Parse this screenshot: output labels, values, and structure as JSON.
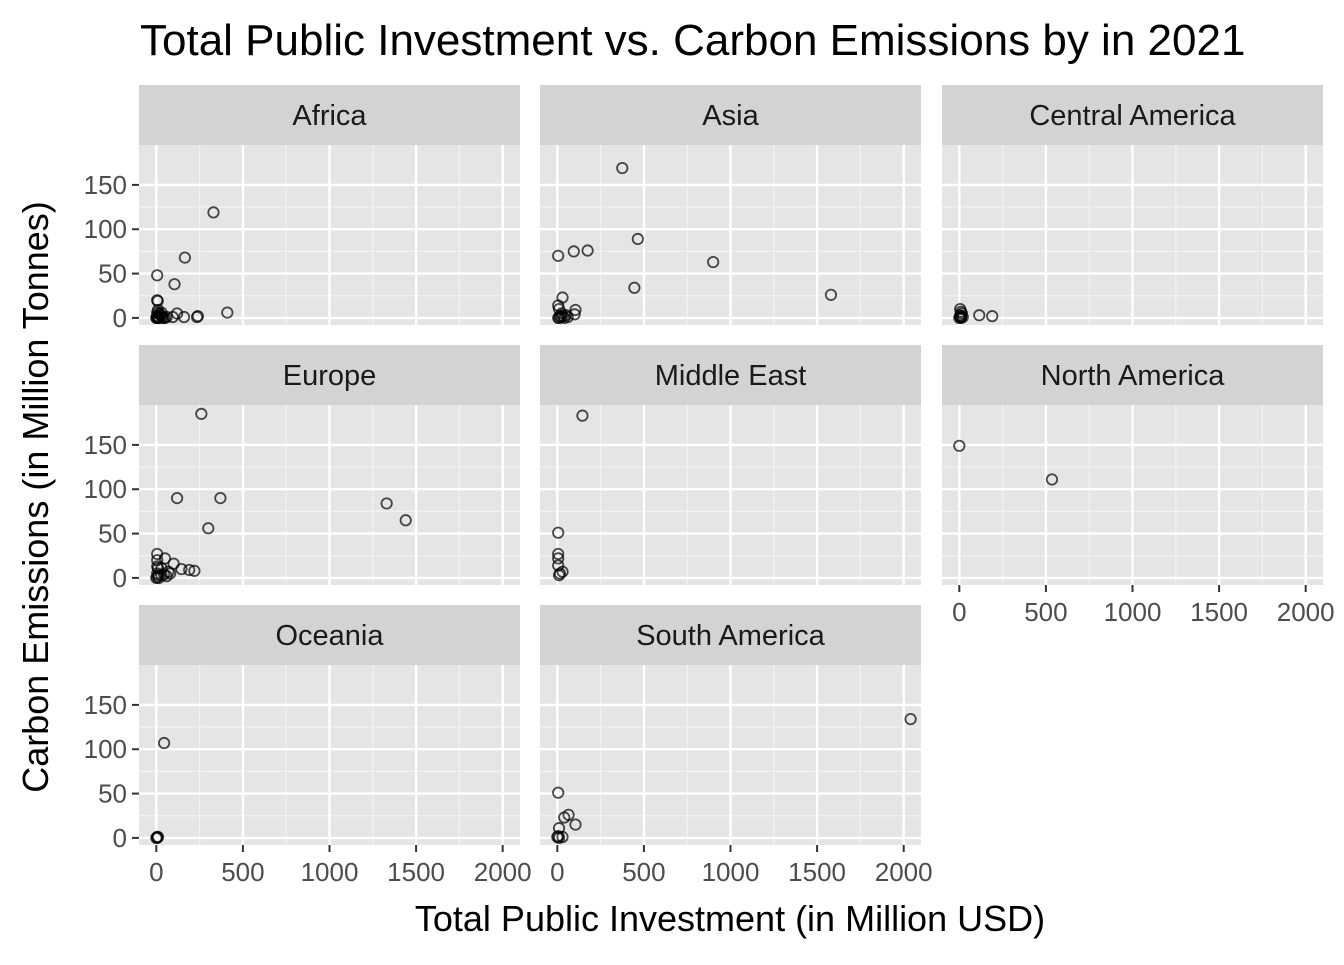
{
  "chart_data": {
    "type": "scatter",
    "title": "Total Public Investment vs. Carbon Emissions by in 2021",
    "xlabel": "Total Public Investment (in Million USD)",
    "ylabel": "Carbon Emissions (in Million Tonnes)",
    "xlim": [
      -100,
      2100
    ],
    "ylim": [
      -8,
      195
    ],
    "x_ticks": [
      0,
      500,
      1000,
      1500,
      2000
    ],
    "y_ticks": [
      0,
      50,
      100,
      150
    ],
    "grid": true,
    "legend": "none",
    "panel_background": "#e5e5e5",
    "strip_background": "#d3d3d3",
    "point_color": "#000000",
    "panels": [
      {
        "name": "Africa",
        "points": [
          [
            330,
            119
          ],
          [
            165,
            68
          ],
          [
            105,
            38
          ],
          [
            5,
            48
          ],
          [
            410,
            6
          ],
          [
            240,
            2
          ],
          [
            235,
            1
          ],
          [
            120,
            5
          ],
          [
            160,
            1
          ],
          [
            95,
            1
          ],
          [
            5,
            20
          ],
          [
            8,
            19
          ],
          [
            10,
            9
          ],
          [
            5,
            6
          ],
          [
            15,
            5
          ],
          [
            20,
            4
          ],
          [
            25,
            3
          ],
          [
            30,
            2
          ],
          [
            35,
            1
          ],
          [
            5,
            2
          ],
          [
            10,
            1
          ],
          [
            0,
            0
          ],
          [
            2,
            0
          ],
          [
            8,
            0
          ],
          [
            12,
            0
          ],
          [
            18,
            0
          ],
          [
            40,
            0
          ],
          [
            50,
            0
          ],
          [
            60,
            1
          ],
          [
            30,
            6
          ]
        ]
      },
      {
        "name": "Asia",
        "points": [
          [
            375,
            169
          ],
          [
            465,
            89
          ],
          [
            175,
            76
          ],
          [
            95,
            75
          ],
          [
            5,
            70
          ],
          [
            900,
            63
          ],
          [
            445,
            34
          ],
          [
            1580,
            26
          ],
          [
            30,
            23
          ],
          [
            5,
            14
          ],
          [
            10,
            10
          ],
          [
            105,
            9
          ],
          [
            100,
            4
          ],
          [
            50,
            3
          ],
          [
            30,
            2
          ],
          [
            20,
            1
          ],
          [
            5,
            0
          ],
          [
            10,
            0
          ],
          [
            15,
            2
          ],
          [
            40,
            0
          ],
          [
            60,
            1
          ],
          [
            25,
            5
          ]
        ]
      },
      {
        "name": "Central America",
        "points": [
          [
            5,
            10
          ],
          [
            10,
            7
          ],
          [
            15,
            5
          ],
          [
            5,
            3
          ],
          [
            10,
            2
          ],
          [
            5,
            1
          ],
          [
            0,
            0
          ],
          [
            10,
            0
          ],
          [
            115,
            3
          ],
          [
            190,
            2
          ],
          [
            20,
            1
          ]
        ]
      },
      {
        "name": "Europe",
        "points": [
          [
            260,
            185
          ],
          [
            370,
            90
          ],
          [
            120,
            90
          ],
          [
            300,
            56
          ],
          [
            1330,
            84
          ],
          [
            1440,
            65
          ],
          [
            5,
            27
          ],
          [
            50,
            22
          ],
          [
            5,
            20
          ],
          [
            100,
            16
          ],
          [
            5,
            13
          ],
          [
            10,
            11
          ],
          [
            30,
            11
          ],
          [
            145,
            10
          ],
          [
            190,
            9
          ],
          [
            220,
            8
          ],
          [
            70,
            7
          ],
          [
            80,
            5
          ],
          [
            60,
            2
          ],
          [
            5,
            5
          ],
          [
            10,
            3
          ],
          [
            5,
            1
          ],
          [
            0,
            0
          ],
          [
            15,
            0
          ],
          [
            30,
            3
          ],
          [
            45,
            4
          ]
        ]
      },
      {
        "name": "Middle East",
        "points": [
          [
            145,
            183
          ],
          [
            5,
            51
          ],
          [
            5,
            27
          ],
          [
            5,
            22
          ],
          [
            5,
            14
          ],
          [
            30,
            7
          ],
          [
            15,
            5
          ],
          [
            10,
            3
          ]
        ]
      },
      {
        "name": "North America",
        "points": [
          [
            0,
            149
          ],
          [
            535,
            111
          ]
        ]
      },
      {
        "name": "Oceania",
        "points": [
          [
            45,
            107
          ],
          [
            5,
            1
          ],
          [
            5,
            0
          ],
          [
            0,
            0
          ],
          [
            10,
            1
          ]
        ]
      },
      {
        "name": "South America",
        "points": [
          [
            2040,
            134
          ],
          [
            5,
            51
          ],
          [
            65,
            26
          ],
          [
            40,
            23
          ],
          [
            105,
            15
          ],
          [
            10,
            11
          ],
          [
            30,
            1
          ],
          [
            5,
            2
          ],
          [
            0,
            1
          ],
          [
            10,
            0
          ]
        ]
      }
    ]
  }
}
